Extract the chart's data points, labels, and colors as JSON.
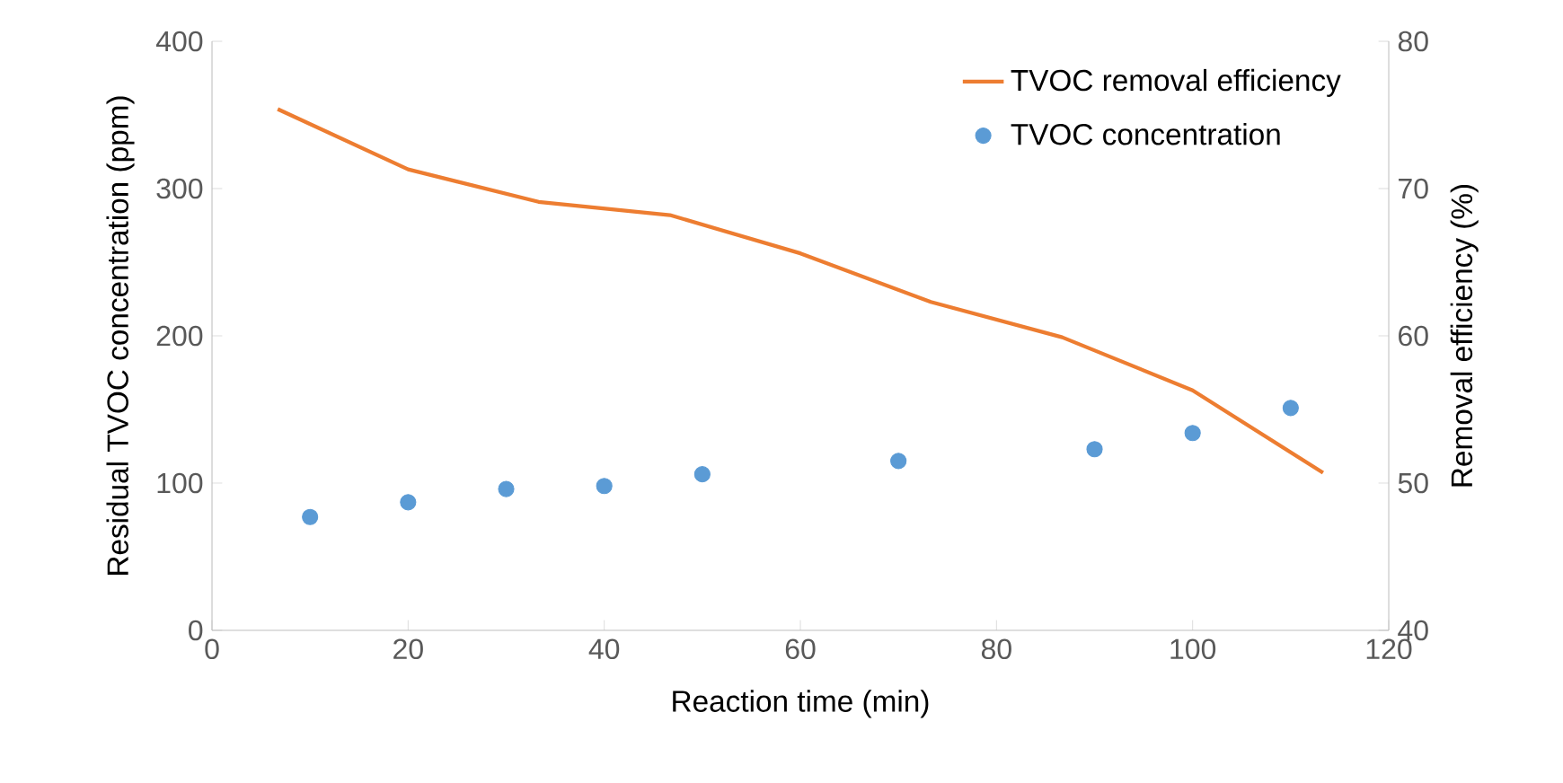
{
  "chart_data": {
    "type": "line",
    "xlabel": "Reaction time (min)",
    "ylabel": "Residual TVOC concentration (ppm)",
    "y2label": "Removal efficiency (%)",
    "xlim": [
      0,
      120
    ],
    "xticks": [
      0,
      20,
      40,
      60,
      80,
      100,
      120
    ],
    "ylim": [
      0,
      400
    ],
    "yticks": [
      0,
      100,
      200,
      300,
      400
    ],
    "y2lim": [
      40,
      80
    ],
    "y2ticks": [
      40,
      50,
      60,
      70,
      80
    ],
    "grid": false,
    "legend": "top right",
    "series": [
      {
        "name": "TVOC removal efficiency",
        "axis": "y2",
        "color": "#ed7d31",
        "marker": "none",
        "x": [
          6.7,
          20,
          33.3,
          46.7,
          60,
          73.3,
          86.7,
          100,
          113.3
        ],
        "values": [
          75.4,
          71.3,
          69.1,
          68.2,
          65.6,
          62.3,
          59.9,
          56.3,
          50.7
        ]
      },
      {
        "name": "TVOC concentration",
        "type": "scatter",
        "axis": "y",
        "color": "#5b9bd5",
        "marker": "circle",
        "x": [
          10,
          20,
          30,
          40,
          50,
          70,
          90,
          100,
          110
        ],
        "values": [
          77,
          87,
          96,
          98,
          106,
          115,
          123,
          134,
          151
        ]
      }
    ]
  }
}
